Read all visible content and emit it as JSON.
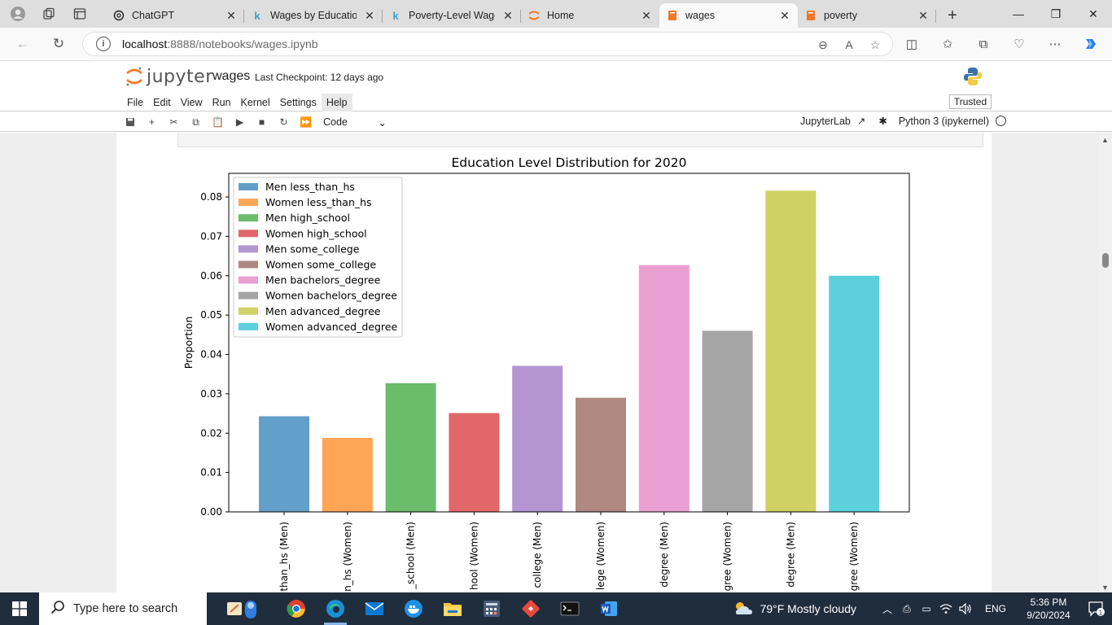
{
  "browser": {
    "tabs": [
      {
        "title": "ChatGPT",
        "icon": "openai-icon"
      },
      {
        "title": "Wages by Education",
        "icon": "k-icon"
      },
      {
        "title": "Poverty-Level Wages",
        "icon": "k-icon"
      },
      {
        "title": "Home",
        "icon": "jupyter-icon"
      },
      {
        "title": "wages",
        "icon": "notebook-icon"
      },
      {
        "title": "poverty",
        "icon": "notebook-icon"
      }
    ],
    "url_host": "localhost",
    "url_path": ":8888/notebooks/wages.ipynb"
  },
  "jupyter": {
    "wordmark": "jupyter",
    "notebook_title": "wages",
    "checkpoint": "Last Checkpoint: 12 days ago",
    "menu": [
      "File",
      "Edit",
      "View",
      "Run",
      "Kernel",
      "Settings",
      "Help"
    ],
    "trusted": "Trusted",
    "cell_type": "Code",
    "jupyterlab_link": "JupyterLab",
    "kernel_name": "Python 3 (ipykernel)"
  },
  "chart_data": {
    "type": "bar",
    "title": "Education Level Distribution for 2020",
    "xlabel": "",
    "ylabel": "Proportion",
    "ylim": [
      0,
      0.086
    ],
    "yticks": [
      "0.00",
      "0.01",
      "0.02",
      "0.03",
      "0.04",
      "0.05",
      "0.06",
      "0.07",
      "0.08"
    ],
    "categories_visible": [
      "than_hs (Men)",
      "n_hs (Women)",
      "_school (Men)",
      "hool (Women)",
      "college (Men)",
      "lege (Women)",
      "degree (Men)",
      "gree (Women)",
      "degree (Men)",
      "gree (Women)"
    ],
    "legend_position": "upper-left",
    "series": [
      {
        "name": "Men less_than_hs",
        "value": 0.0243,
        "color": "#1f77b4"
      },
      {
        "name": "Women less_than_hs",
        "value": 0.0188,
        "color": "#ff7f0e"
      },
      {
        "name": "Men high_school",
        "value": 0.0327,
        "color": "#2ca02c"
      },
      {
        "name": "Women high_school",
        "value": 0.0251,
        "color": "#d62728"
      },
      {
        "name": "Men some_college",
        "value": 0.0371,
        "color": "#9467bd"
      },
      {
        "name": "Women some_college",
        "value": 0.029,
        "color": "#8c564b"
      },
      {
        "name": "Men bachelors_degree",
        "value": 0.0627,
        "color": "#e377c2"
      },
      {
        "name": "Women bachelors_degree",
        "value": 0.046,
        "color": "#7f7f7f"
      },
      {
        "name": "Men advanced_degree",
        "value": 0.0816,
        "color": "#bcbd22"
      },
      {
        "name": "Women advanced_degree",
        "value": 0.06,
        "color": "#17becf"
      }
    ]
  },
  "taskbar": {
    "search_placeholder": "Type here to search",
    "weather": "79°F  Mostly cloudy",
    "language": "ENG",
    "time": "5:36 PM",
    "date": "9/20/2024",
    "notifications": "1"
  }
}
